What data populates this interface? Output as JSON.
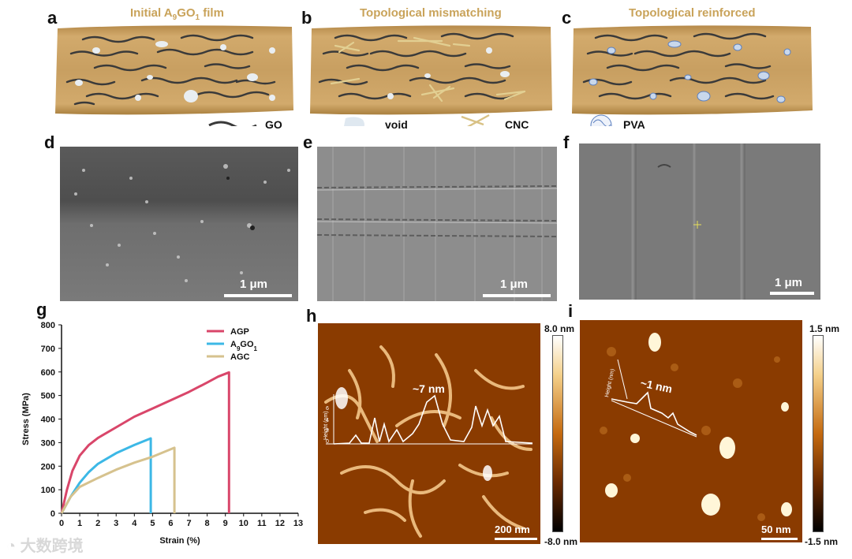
{
  "panels": {
    "a": {
      "label": "a",
      "title_pre": "Initial A",
      "title_sub1": "9",
      "title_mid": "GO",
      "title_sub2": "1",
      "title_post": " film"
    },
    "b": {
      "label": "b",
      "title": "Topological mismatching"
    },
    "c": {
      "label": "c",
      "title": "Topological reinforced"
    },
    "d": {
      "label": "d",
      "scale": "1 μm"
    },
    "e": {
      "label": "e",
      "scale": "1 μm"
    },
    "f": {
      "label": "f",
      "scale": "1 μm"
    },
    "g": {
      "label": "g"
    },
    "h": {
      "label": "h",
      "scale": "200 nm",
      "cb_max": "8.0 nm",
      "cb_min": "-8.0 nm",
      "annotation": "~7 nm",
      "profile_ylabel": "Height (nm)"
    },
    "i": {
      "label": "i",
      "scale": "50 nm",
      "cb_max": "1.5 nm",
      "cb_min": "-1.5 nm",
      "annotation": "~1 nm",
      "profile_ylabel": "Height (nm)"
    }
  },
  "legend": {
    "go": "GO",
    "void": "void",
    "cnc": "CNC",
    "pva": "PVA"
  },
  "watermark": "大数跨境",
  "colors": {
    "film": "#c9a060",
    "fiber": "#3a3a3a",
    "agp": "#d9466a",
    "agox": "#3cb8e6",
    "agc": "#d6c28e"
  },
  "chart_data": {
    "type": "line",
    "xlabel": "Strain (%)",
    "ylabel": "Stress (MPa)",
    "xlim": [
      0,
      13
    ],
    "ylim": [
      0,
      800
    ],
    "xticks": [
      0,
      1,
      2,
      3,
      4,
      5,
      6,
      7,
      8,
      9,
      10,
      11,
      12,
      13
    ],
    "yticks": [
      0,
      100,
      200,
      300,
      400,
      500,
      600,
      700,
      800
    ],
    "legend_position": "top-right",
    "series": [
      {
        "name": "AGP",
        "color": "#d9466a",
        "points": [
          [
            0,
            0
          ],
          [
            0.3,
            100
          ],
          [
            0.6,
            180
          ],
          [
            1,
            245
          ],
          [
            1.5,
            290
          ],
          [
            2,
            320
          ],
          [
            3,
            365
          ],
          [
            4,
            410
          ],
          [
            5,
            445
          ],
          [
            6,
            480
          ],
          [
            7,
            515
          ],
          [
            8,
            555
          ],
          [
            8.6,
            580
          ],
          [
            9.2,
            598
          ],
          [
            9.2,
            0
          ]
        ]
      },
      {
        "name_pre": "A",
        "name_sub1": "9",
        "name_mid": "GO",
        "name_sub2": "1",
        "color": "#3cb8e6",
        "points": [
          [
            0,
            0
          ],
          [
            0.5,
            70
          ],
          [
            1,
            130
          ],
          [
            1.5,
            175
          ],
          [
            2,
            210
          ],
          [
            3,
            255
          ],
          [
            4,
            290
          ],
          [
            4.9,
            318
          ],
          [
            4.9,
            0
          ]
        ]
      },
      {
        "name": "AGC",
        "color": "#d6c28e",
        "points": [
          [
            0,
            0
          ],
          [
            0.5,
            70
          ],
          [
            1,
            112
          ],
          [
            2,
            150
          ],
          [
            3,
            185
          ],
          [
            4,
            215
          ],
          [
            5,
            240
          ],
          [
            6.2,
            278
          ],
          [
            6.2,
            0
          ]
        ]
      }
    ]
  }
}
